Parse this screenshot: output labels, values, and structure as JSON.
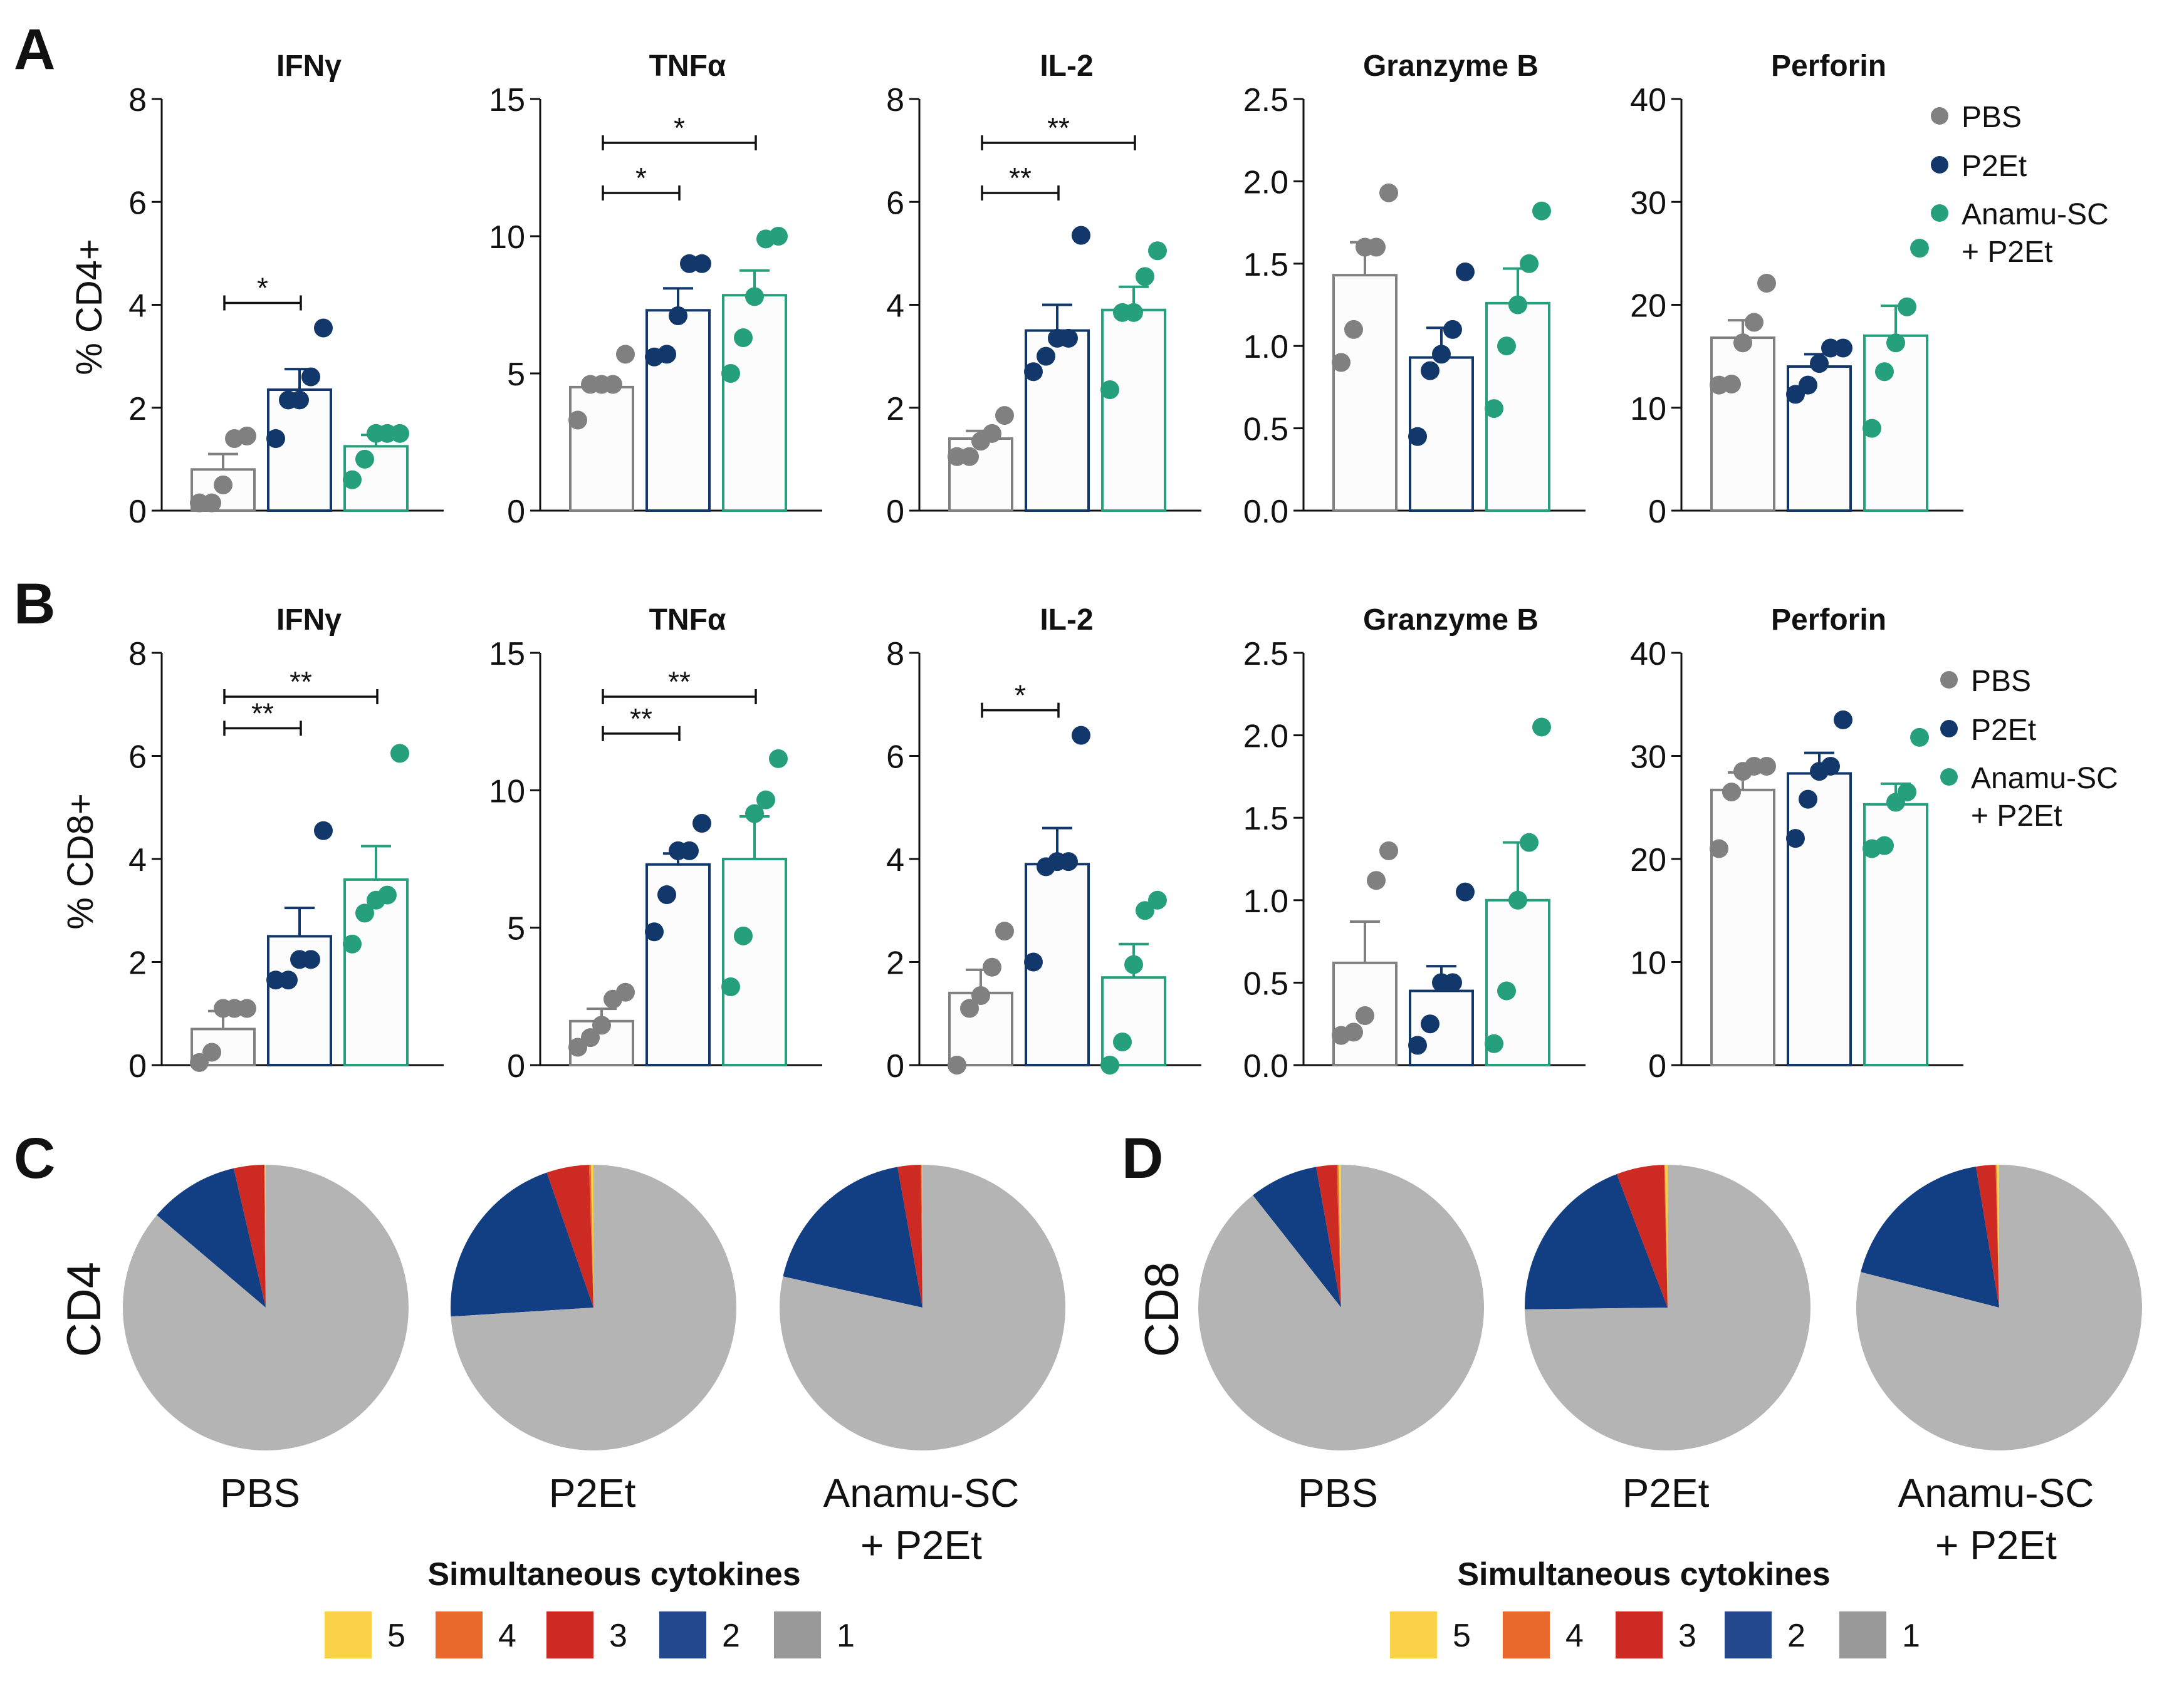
{
  "colors": {
    "PBS": "#808080",
    "P2Et": "#12386b",
    "Anamu": "#26a07c",
    "c5": "#f9d24a",
    "c4": "#e9692c",
    "c3": "#cc2a22",
    "c2": "#123f84",
    "c1": "#b4b4b4",
    "legend_c2": "#23488e",
    "legend_c1": "#999999"
  },
  "panels": {
    "A": {
      "letter": "A",
      "ylabel": "% CD4+"
    },
    "B": {
      "letter": "B",
      "ylabel": "% CD8+"
    },
    "C": {
      "letter": "C",
      "rowlabel": "CD4"
    },
    "D": {
      "letter": "D",
      "rowlabel": "CD8"
    }
  },
  "legend": {
    "A": {
      "pbs": "PBS",
      "p2et": "P2Et",
      "anamu_1": "Anamu-SC",
      "anamu_2": "+ P2Et"
    },
    "B": {
      "pbs": "PBS",
      "p2et": "P2Et",
      "anamu_1": "Anamu-SC",
      "anamu_2": "+ P2Et"
    }
  },
  "pie_labels": {
    "pbs": "PBS",
    "p2et": "P2Et",
    "anamu_1": "Anamu-SC",
    "anamu_2": "+ P2Et"
  },
  "cytokine_legend": {
    "title": "Simultaneous cytokines",
    "labels": [
      "5",
      "4",
      "3",
      "2",
      "1"
    ]
  },
  "chart_data": [
    {
      "type": "bar",
      "panel": "A",
      "title": "IFNγ",
      "ylabel": "% CD4+",
      "ylim": [
        0,
        8
      ],
      "yticks": [
        "0",
        "2",
        "4",
        "6",
        "8"
      ],
      "categories": [
        "PBS",
        "P2Et",
        "Anamu-SC + P2Et"
      ],
      "means": [
        0.8,
        2.35,
        1.25
      ],
      "sem": [
        0.3,
        0.4,
        0.22
      ],
      "points": [
        [
          0.15,
          0.15,
          0.5,
          1.4,
          1.45
        ],
        [
          1.4,
          2.15,
          2.15,
          2.6,
          3.55
        ],
        [
          0.6,
          1.0,
          1.5,
          1.5,
          1.5
        ]
      ],
      "significance": [
        {
          "from": 0,
          "to": 1,
          "label": "*"
        }
      ]
    },
    {
      "type": "bar",
      "panel": "A",
      "title": "TNFα",
      "ylabel": "% CD4+",
      "ylim": [
        0,
        15
      ],
      "yticks": [
        "0",
        "5",
        "10",
        "15"
      ],
      "categories": [
        "PBS",
        "P2Et",
        "Anamu-SC + P2Et"
      ],
      "means": [
        4.5,
        7.3,
        7.85
      ],
      "sem": [
        0.3,
        0.8,
        0.9
      ],
      "points": [
        [
          3.3,
          4.6,
          4.6,
          4.6,
          5.7
        ],
        [
          5.6,
          5.7,
          7.1,
          9.0,
          9.0
        ],
        [
          5.0,
          6.3,
          7.8,
          9.9,
          10.0
        ]
      ],
      "significance": [
        {
          "from": 0,
          "to": 1,
          "label": "*"
        },
        {
          "from": 0,
          "to": 2,
          "label": "*"
        }
      ]
    },
    {
      "type": "bar",
      "panel": "A",
      "title": "IL-2",
      "ylabel": "% CD4+",
      "ylim": [
        0,
        8
      ],
      "yticks": [
        "0",
        "2",
        "4",
        "6",
        "8"
      ],
      "categories": [
        "PBS",
        "P2Et",
        "Anamu-SC + P2Et"
      ],
      "means": [
        1.4,
        3.5,
        3.9
      ],
      "sem": [
        0.15,
        0.5,
        0.45
      ],
      "points": [
        [
          1.05,
          1.05,
          1.35,
          1.5,
          1.85
        ],
        [
          2.7,
          3.0,
          3.35,
          3.35,
          5.35
        ],
        [
          2.35,
          3.85,
          3.85,
          4.55,
          5.05
        ]
      ],
      "significance": [
        {
          "from": 0,
          "to": 1,
          "label": "**"
        },
        {
          "from": 0,
          "to": 2,
          "label": "**"
        }
      ]
    },
    {
      "type": "bar",
      "panel": "A",
      "title": "Granzyme B",
      "ylabel": "% CD4+",
      "ylim": [
        0,
        2.5
      ],
      "yticks": [
        "0.0",
        "0.5",
        "1.0",
        "1.5",
        "2.0",
        "2.5"
      ],
      "categories": [
        "PBS",
        "P2Et",
        "Anamu-SC + P2Et"
      ],
      "means": [
        1.43,
        0.93,
        1.26
      ],
      "sem": [
        0.2,
        0.18,
        0.21
      ],
      "points": [
        [
          0.9,
          1.1,
          1.6,
          1.6,
          1.93
        ],
        [
          0.45,
          0.85,
          0.95,
          1.1,
          1.45
        ],
        [
          0.62,
          1.0,
          1.25,
          1.5,
          1.82
        ]
      ],
      "significance": []
    },
    {
      "type": "bar",
      "panel": "A",
      "title": "Perforin",
      "ylabel": "% CD4+",
      "ylim": [
        0,
        40
      ],
      "yticks": [
        "0",
        "10",
        "20",
        "30",
        "40"
      ],
      "categories": [
        "PBS",
        "P2Et",
        "Anamu-SC + P2Et"
      ],
      "means": [
        16.8,
        14.0,
        17.0
      ],
      "sem": [
        1.7,
        1.2,
        2.9
      ],
      "points": [
        [
          12.2,
          12.3,
          16.3,
          18.3,
          22.1
        ],
        [
          11.3,
          12.2,
          14.3,
          15.8,
          15.8
        ],
        [
          8.0,
          13.5,
          16.3,
          19.8,
          25.5
        ]
      ],
      "significance": []
    },
    {
      "type": "bar",
      "panel": "B",
      "title": "IFNγ",
      "ylabel": "% CD8+",
      "ylim": [
        0,
        8
      ],
      "yticks": [
        "0",
        "2",
        "4",
        "6",
        "8"
      ],
      "categories": [
        "PBS",
        "P2Et",
        "Anamu-SC + P2Et"
      ],
      "means": [
        0.7,
        2.5,
        3.6
      ],
      "sem": [
        0.35,
        0.55,
        0.65
      ],
      "points": [
        [
          0.05,
          0.25,
          1.1,
          1.1,
          1.1
        ],
        [
          1.65,
          1.65,
          2.05,
          2.05,
          4.55
        ],
        [
          2.35,
          2.95,
          3.2,
          3.3,
          6.05
        ]
      ],
      "significance": [
        {
          "from": 0,
          "to": 1,
          "label": "**"
        },
        {
          "from": 0,
          "to": 2,
          "label": "**"
        }
      ]
    },
    {
      "type": "bar",
      "panel": "B",
      "title": "TNFα",
      "ylabel": "% CD8+",
      "ylim": [
        0,
        15
      ],
      "yticks": [
        "0",
        "5",
        "10",
        "15"
      ],
      "categories": [
        "PBS",
        "P2Et",
        "Anamu-SC + P2Et"
      ],
      "means": [
        1.6,
        7.3,
        7.5
      ],
      "sem": [
        0.45,
        0.4,
        1.55
      ],
      "points": [
        [
          0.65,
          1.0,
          1.45,
          2.4,
          2.65
        ],
        [
          4.85,
          6.2,
          7.8,
          7.8,
          8.8
        ],
        [
          2.85,
          4.7,
          9.15,
          9.65,
          11.15
        ]
      ],
      "significance": [
        {
          "from": 0,
          "to": 1,
          "label": "**"
        },
        {
          "from": 0,
          "to": 2,
          "label": "**"
        }
      ]
    },
    {
      "type": "bar",
      "panel": "B",
      "title": "IL-2",
      "ylabel": "% CD8+",
      "ylim": [
        0,
        8
      ],
      "yticks": [
        "0",
        "2",
        "4",
        "6",
        "8"
      ],
      "categories": [
        "PBS",
        "P2Et",
        "Anamu-SC + P2Et"
      ],
      "means": [
        1.4,
        3.9,
        1.7
      ],
      "sem": [
        0.45,
        0.7,
        0.65
      ],
      "points": [
        [
          0.0,
          1.1,
          1.35,
          1.9,
          2.6
        ],
        [
          2.0,
          3.85,
          3.95,
          3.95,
          6.4
        ],
        [
          0.0,
          0.45,
          1.95,
          3.0,
          3.2
        ]
      ],
      "significance": [
        {
          "from": 0,
          "to": 1,
          "label": "*"
        }
      ]
    },
    {
      "type": "bar",
      "panel": "B",
      "title": "Granzyme B",
      "ylabel": "% CD8+",
      "ylim": [
        0,
        2.5
      ],
      "yticks": [
        "0.0",
        "0.5",
        "1.0",
        "1.5",
        "2.0",
        "2.5"
      ],
      "categories": [
        "PBS",
        "P2Et",
        "Anamu-SC + P2Et"
      ],
      "means": [
        0.62,
        0.45,
        1.0
      ],
      "sem": [
        0.25,
        0.15,
        0.35
      ],
      "points": [
        [
          0.18,
          0.2,
          0.3,
          1.12,
          1.3
        ],
        [
          0.12,
          0.25,
          0.5,
          0.5,
          1.05
        ],
        [
          0.13,
          0.45,
          1.0,
          1.35,
          2.05
        ]
      ],
      "significance": []
    },
    {
      "type": "bar",
      "panel": "B",
      "title": "Perforin",
      "ylabel": "% CD8+",
      "ylim": [
        0,
        40
      ],
      "yticks": [
        "0",
        "10",
        "20",
        "30",
        "40"
      ],
      "categories": [
        "PBS",
        "P2Et",
        "Anamu-SC + P2Et"
      ],
      "means": [
        26.7,
        28.3,
        25.3
      ],
      "sem": [
        1.7,
        2.0,
        2.0
      ],
      "points": [
        [
          21.0,
          26.5,
          28.5,
          29.0,
          29.0
        ],
        [
          22.0,
          25.8,
          28.5,
          29.0,
          33.5
        ],
        [
          21.0,
          21.3,
          25.5,
          26.5,
          31.8
        ]
      ],
      "significance": []
    },
    {
      "type": "pie",
      "panel": "C",
      "row": "CD4",
      "groups": [
        "PBS",
        "P2Et",
        "Anamu-SC + P2Et"
      ],
      "categories": [
        "5",
        "4",
        "3",
        "2",
        "1"
      ],
      "values": [
        [
          0.1,
          0.1,
          3.4,
          10.2,
          86.2
        ],
        [
          0.3,
          0.2,
          4.8,
          20.7,
          74.0
        ],
        [
          0.1,
          0.1,
          2.6,
          18.7,
          78.5
        ]
      ]
    },
    {
      "type": "pie",
      "panel": "D",
      "row": "CD8",
      "groups": [
        "PBS",
        "P2Et",
        "Anamu-SC + P2Et"
      ],
      "categories": [
        "5",
        "4",
        "3",
        "2",
        "1"
      ],
      "values": [
        [
          0.3,
          0.2,
          2.3,
          7.8,
          89.4
        ],
        [
          0.3,
          0.1,
          5.4,
          19.4,
          74.8
        ],
        [
          0.3,
          0.1,
          2.2,
          18.4,
          79.0
        ]
      ]
    }
  ]
}
